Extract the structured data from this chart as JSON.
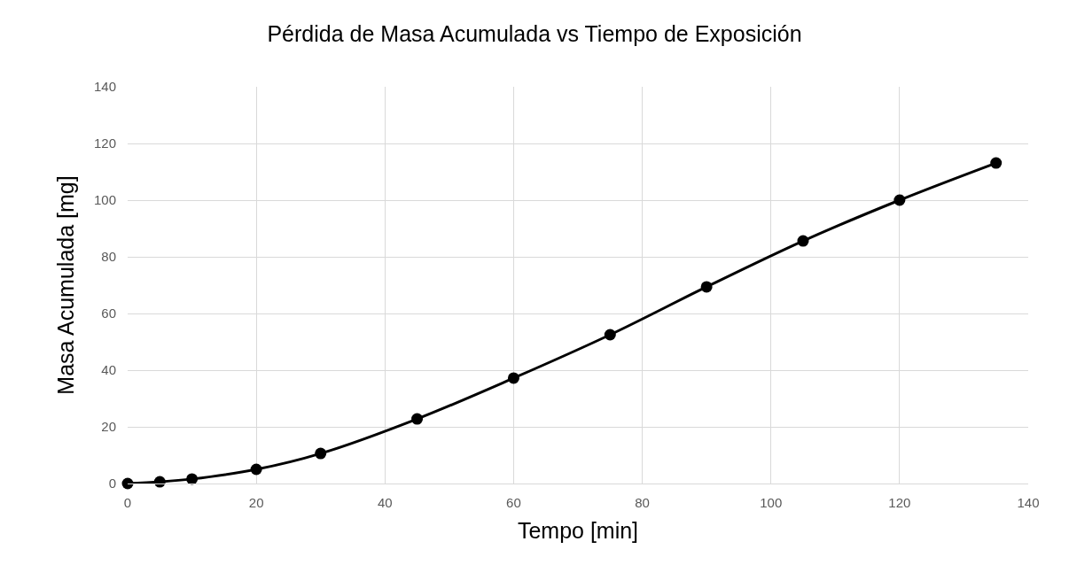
{
  "chart_data": {
    "type": "line",
    "title": "Pérdida de Masa Acumulada vs Tiempo de Exposición",
    "xlabel": "Tempo [min]",
    "ylabel": "Masa Acumulada [mg]",
    "x": [
      0,
      5,
      10,
      20,
      30,
      45,
      60,
      75,
      90,
      105,
      120,
      135
    ],
    "series": [
      {
        "color": "#000000",
        "values": [
          0,
          0.6,
          1.6,
          5.0,
          10.6,
          22.8,
          37.2,
          52.5,
          69.4,
          85.6,
          100,
          113.1
        ]
      }
    ],
    "xlim": [
      0,
      140
    ],
    "xticks": [
      0,
      20,
      40,
      60,
      80,
      100,
      120,
      140
    ],
    "ylim": [
      0,
      140
    ],
    "yticks": [
      0,
      20,
      40,
      60,
      80,
      100,
      120,
      140
    ],
    "grid": true,
    "marker": "circle",
    "line_style": "solid"
  }
}
